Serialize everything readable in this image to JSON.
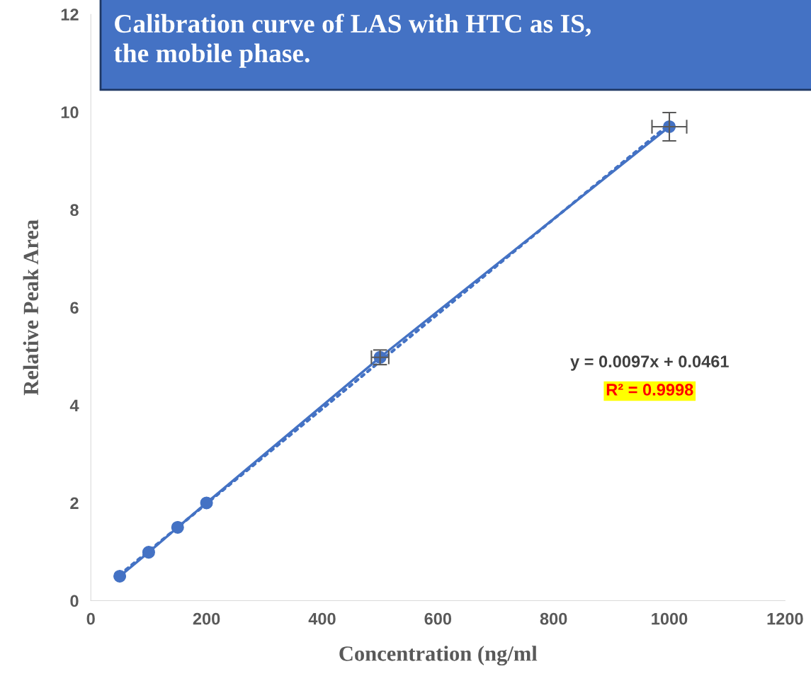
{
  "chart_data": {
    "type": "line",
    "title": "Calibration curve of LAS with HTC as IS,\nthe mobile phase.",
    "xlabel": "Concentration (ng/ml",
    "ylabel": "Relative Peak Area",
    "series": [
      {
        "color": "#4472c4",
        "x": [
          50,
          100,
          150,
          200,
          500,
          1000
        ],
        "values": [
          0.5,
          0.99,
          1.5,
          2.0,
          4.98,
          9.7
        ],
        "errors": [
          null,
          null,
          null,
          null,
          0.15,
          0.29
        ],
        "xerrors": [
          null,
          null,
          null,
          null,
          15,
          30
        ],
        "marker": "circle",
        "line_style": "solid"
      },
      {
        "type": "line",
        "color": "#4472c4",
        "x": [
          50,
          1000
        ],
        "values": [
          0.53,
          9.75
        ],
        "marker": "none",
        "line_style": "dotted"
      }
    ],
    "annotations": [
      "y = 0.0097x + 0.0461",
      "R² = 0.9998"
    ],
    "xlim": [
      0,
      1200
    ],
    "ylim": [
      0,
      12
    ],
    "xticks": [
      0,
      200,
      400,
      600,
      800,
      1000,
      1200
    ],
    "yticks": [
      0,
      2,
      4,
      6,
      8,
      10,
      12
    ],
    "grid": false,
    "legend": false
  }
}
